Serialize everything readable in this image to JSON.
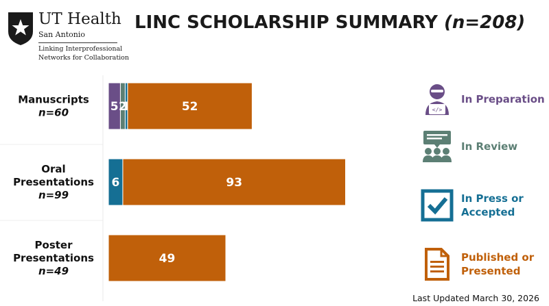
{
  "logo": {
    "name": "UT Health",
    "subname": "San Antonio",
    "tagline_line1": "Linking Interprofessional",
    "tagline_line2": "Networks for Collaboration"
  },
  "title": {
    "main": "LINC SCHOLARSHIP SUMMARY",
    "n": "(n=208)"
  },
  "legend": [
    {
      "label_line1": "In Preparation",
      "label_line2": "",
      "color": "#6a4e87",
      "icon": "person-laptop-icon"
    },
    {
      "label_line1": "In Review",
      "label_line2": "",
      "color": "#5c7f74",
      "icon": "audience-icon"
    },
    {
      "label_line1": "In Press or",
      "label_line2": "Accepted",
      "color": "#156f94",
      "icon": "checkbox-icon"
    },
    {
      "label_line1": "Published or",
      "label_line2": "Presented",
      "color": "#c0600a",
      "icon": "document-icon"
    }
  ],
  "chart_data": {
    "type": "bar",
    "orientation": "horizontal",
    "stacked": true,
    "categories": [
      {
        "label_line1": "Manuscripts",
        "label_line2": "",
        "n_label": "n=60"
      },
      {
        "label_line1": "Oral",
        "label_line2": "Presentations",
        "n_label": "n=99"
      },
      {
        "label_line1": "Poster",
        "label_line2": "Presentations",
        "n_label": "n=49"
      }
    ],
    "series": [
      {
        "name": "In Preparation",
        "color": "#6a4e87",
        "values": [
          5,
          0,
          0
        ]
      },
      {
        "name": "In Review",
        "color": "#5c7f74",
        "values": [
          2,
          0,
          0
        ]
      },
      {
        "name": "In Press or Accepted",
        "color": "#156f94",
        "values": [
          1,
          6,
          0
        ]
      },
      {
        "name": "Published or Presented",
        "color": "#c0600a",
        "values": [
          52,
          93,
          49
        ]
      }
    ],
    "legend_position": "right",
    "grid": false
  },
  "footer": {
    "updated": "Last Updated March 30, 2026"
  }
}
